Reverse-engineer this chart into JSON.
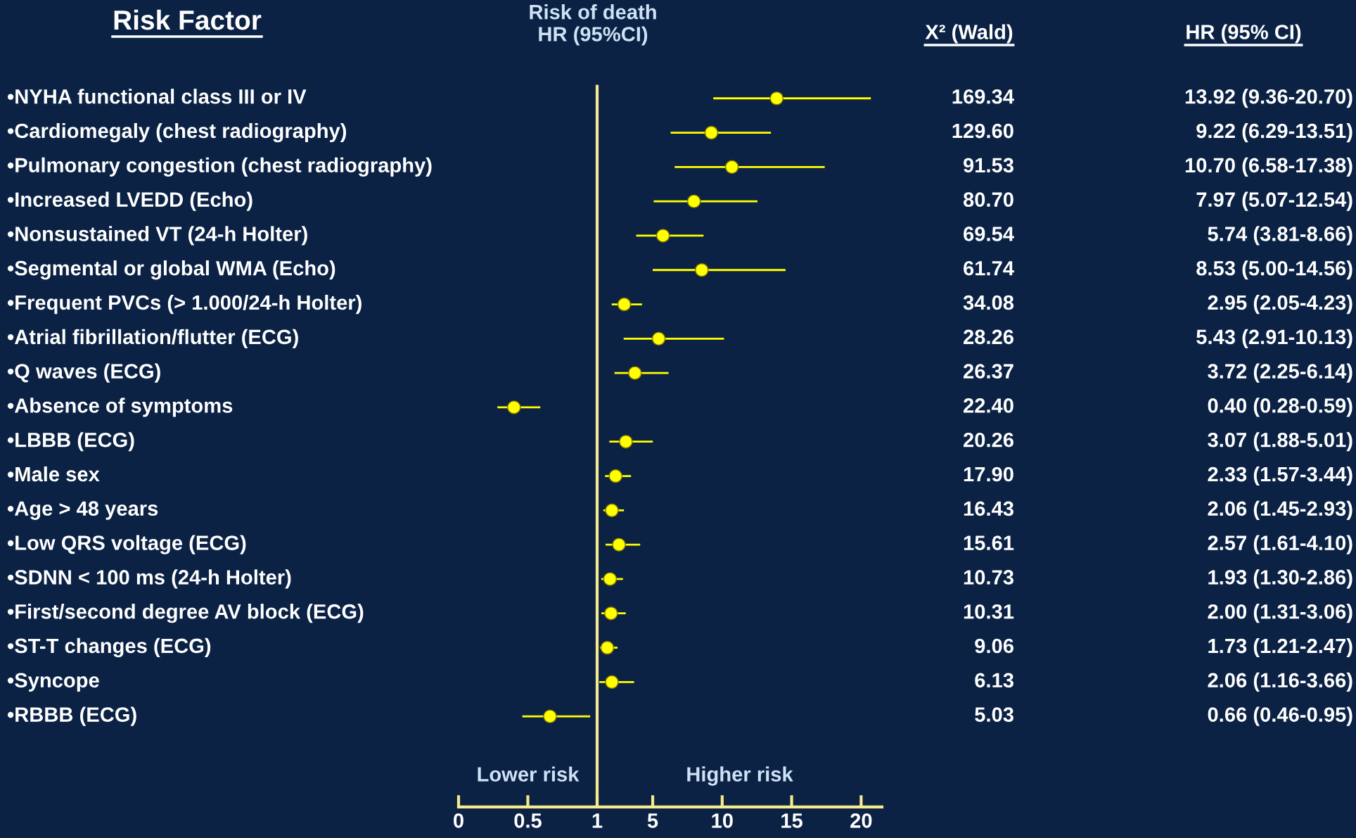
{
  "chart_data": [
    {
      "type": "scatter",
      "orientation": "horizontal",
      "ylabel": "Risk Factor",
      "categories": [
        "•NYHA functional class III or IV",
        "•Cardiomegaly (chest radiography)",
        "•Pulmonary congestion (chest radiography)",
        "•Increased LVEDD (Echo)",
        "•Nonsustained VT (24-h Holter)",
        "•Segmental or global WMA (Echo)",
        "•Frequent PVCs (> 1.000/24-h Holter)",
        "•Atrial fibrillation/flutter (ECG)",
        "•Q waves (ECG)",
        "•Absence of symptoms",
        "•LBBB (ECG)",
        "•Male sex",
        "•Age > 48 years",
        "•Low QRS voltage (ECG)",
        "•SDNN < 100 ms (24-h Holter)",
        "•First/second degree AV block (ECG)",
        "•ST-T changes (ECG)",
        "•Syncope",
        "•RBBB (ECG)"
      ],
      "series": [
        {
          "color": "#ffff00",
          "values": [
            null,
            null,
            null,
            null,
            null,
            null,
            null,
            null,
            null,
            0.4,
            null,
            null,
            null,
            null,
            null,
            null,
            null,
            null,
            0.66
          ],
          "errors": [
            null,
            null,
            null,
            null,
            null,
            null,
            null,
            null,
            null,
            [
              0.28,
              0.59
            ],
            null,
            null,
            null,
            null,
            null,
            null,
            null,
            null,
            [
              0.46,
              0.95
            ]
          ],
          "value_labels": [
            null,
            null,
            null,
            null,
            null,
            null,
            null,
            null,
            null,
            "0.40 (0.28-0.59)",
            null,
            null,
            null,
            null,
            null,
            null,
            null,
            null,
            "0.66 (0.46-0.95)"
          ]
        }
      ],
      "xlim": [
        0,
        1
      ],
      "xticks": [
        0,
        0.5,
        1
      ],
      "ref_lines": [
        {
          "axis": "x",
          "value": 1,
          "color": "#f5ea8c"
        }
      ],
      "marker": "circle",
      "annotations": [
        "Lower risk"
      ]
    },
    {
      "type": "scatter",
      "orientation": "horizontal",
      "title": "Risk of death\nHR (95%CI)",
      "tick_labels": "x",
      "categories": [
        null,
        null,
        null,
        null,
        null,
        null,
        null,
        null,
        null,
        null,
        null,
        null,
        null,
        null,
        null,
        null,
        null,
        null,
        null
      ],
      "series": [
        {
          "color": "#ffff00",
          "values": [
            13.92,
            9.22,
            10.7,
            7.97,
            5.74,
            8.53,
            2.95,
            5.43,
            3.72,
            null,
            3.07,
            2.33,
            2.06,
            2.57,
            1.93,
            2.0,
            1.73,
            2.06,
            null
          ],
          "errors": [
            [
              9.36,
              20.7
            ],
            [
              6.29,
              13.51
            ],
            [
              6.58,
              17.38
            ],
            [
              5.07,
              12.54
            ],
            [
              3.81,
              8.66
            ],
            [
              5.0,
              14.56
            ],
            [
              2.05,
              4.23
            ],
            [
              2.91,
              10.13
            ],
            [
              2.25,
              6.14
            ],
            null,
            [
              1.88,
              5.01
            ],
            [
              1.57,
              3.44
            ],
            [
              1.45,
              2.93
            ],
            [
              1.61,
              4.1
            ],
            [
              1.3,
              2.86
            ],
            [
              1.31,
              3.06
            ],
            [
              1.21,
              2.47
            ],
            [
              1.16,
              3.66
            ],
            null
          ],
          "value_labels": [
            "13.92 (9.36-20.70)",
            "9.22 (6.29-13.51)",
            "10.70 (6.58-17.38)",
            "7.97 (5.07-12.54)",
            "5.74 (3.81-8.66)",
            "8.53 (5.00-14.56)",
            "2.95 (2.05-4.23)",
            "5.43 (2.91-10.13)",
            "3.72 (2.25-6.14)",
            null,
            "3.07 (1.88-5.01)",
            "2.33 (1.57-3.44)",
            "2.06 (1.45-2.93)",
            "2.57 (1.61-4.10)",
            "1.93 (1.30-2.86)",
            "2.00 (1.31-3.06)",
            "1.73 (1.21-2.47)",
            "2.06 (1.16-3.66)",
            null
          ]
        }
      ],
      "xlim": [
        1,
        21.5
      ],
      "xticks": [
        5,
        10,
        15,
        20
      ],
      "marker": "circle",
      "annotations": [
        "Higher risk",
        "X² (Wald)",
        "HR (95% CI)",
        "169.34",
        "129.60",
        "91.53",
        "80.70",
        "69.54",
        "61.74",
        "34.08",
        "28.26",
        "26.37",
        "22.40",
        "20.26",
        "17.90",
        "16.43",
        "15.61",
        "10.73",
        "10.31",
        "9.06",
        "6.13",
        "5.03"
      ]
    }
  ]
}
